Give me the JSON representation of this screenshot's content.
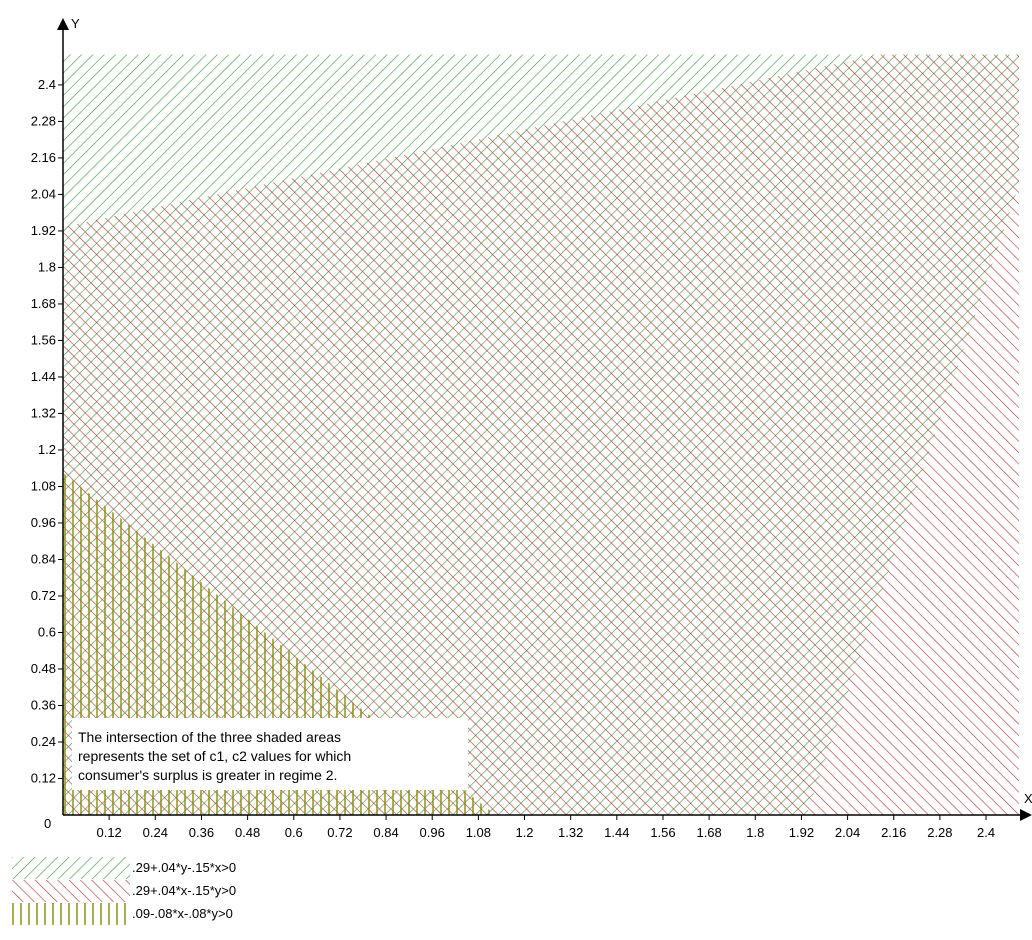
{
  "chart_data": {
    "type": "area",
    "title": "",
    "xlabel": "X",
    "ylabel": "Y",
    "xlim": [
      0,
      2.6
    ],
    "ylim": [
      0,
      2.5
    ],
    "grid": false,
    "legend_position": "bottom-left",
    "origin_label": "0",
    "x_ticks": [
      "0.12",
      "0.24",
      "0.36",
      "0.48",
      "0.6",
      "0.72",
      "0.84",
      "0.96",
      "1.08",
      "1.2",
      "1.32",
      "1.44",
      "1.56",
      "1.68",
      "1.8",
      "1.92",
      "2.04",
      "2.16",
      "2.28",
      "2.4"
    ],
    "y_ticks": [
      "0.12",
      "0.24",
      "0.36",
      "0.48",
      "0.6",
      "0.72",
      "0.84",
      "0.96",
      "1.08",
      "1.2",
      "1.32",
      "1.44",
      "1.56",
      "1.68",
      "1.8",
      "1.92",
      "2.04",
      "2.16",
      "2.28",
      "2.4"
    ],
    "series": [
      {
        "name": ".29+.04*y-.15*x>0",
        "color": "#3a9a3a",
        "hatch": "forward-diagonal",
        "inequality": {
          "const": 0.29,
          "cx": -0.15,
          "cy": 0.04
        }
      },
      {
        "name": ".29+.04*x-.15*y>0",
        "color": "#c03030",
        "hatch": "backward-diagonal",
        "inequality": {
          "const": 0.29,
          "cx": 0.04,
          "cy": -0.15
        }
      },
      {
        "name": ".09-.08*x-.08*y>0",
        "color": "#8a8a00",
        "hatch": "vertical",
        "inequality": {
          "const": 0.09,
          "cx": -0.08,
          "cy": -0.08
        }
      }
    ],
    "annotation": {
      "lines": [
        "The intersection of the three shaded areas",
        "represents the set of c1, c2 values for which",
        "consumer's surplus is greater in regime 2."
      ]
    }
  }
}
